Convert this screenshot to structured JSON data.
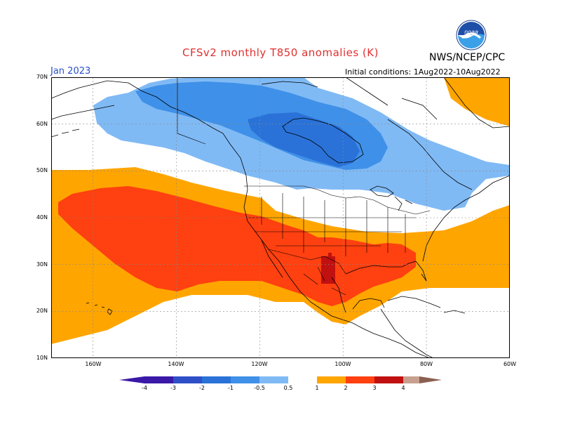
{
  "title": "CFSv2 monthly T850 anomalies (K)",
  "organization": "NWS/NCEP/CPC",
  "logo_text": "NOAA",
  "valid_month": "Jan 2023",
  "initial_conditions": "Initial conditions: 1Aug2022-10Aug2022",
  "lat_labels": [
    "70N",
    "60N",
    "50N",
    "40N",
    "30N",
    "20N",
    "10N"
  ],
  "lon_labels": [
    "160W",
    "140W",
    "120W",
    "100W",
    "80W",
    "60W"
  ],
  "colorbar": {
    "labels": [
      "-4",
      "-3",
      "-2",
      "-1",
      "-0.5",
      "0.5",
      "1",
      "2",
      "3",
      "4"
    ],
    "colors": [
      "#3a18a8",
      "#2f4fc8",
      "#2a72d8",
      "#3f90e8",
      "#80baf5",
      "#ffffff",
      "#ffa500",
      "#ff4010",
      "#c01010",
      "#8a0000",
      "#c8a090",
      "#8a6050"
    ]
  },
  "map": {
    "domain": {
      "lon_min": -170,
      "lon_max": -60,
      "lat_min": 10,
      "lat_max": 70
    },
    "anomaly_regions": [
      {
        "level": "-0.5 to -1",
        "area": "Alaska to Great Lakes, Canada",
        "color": "#80baf5"
      },
      {
        "level": "-1 to -2",
        "area": "Western and central Canada",
        "color": "#3f90e8"
      },
      {
        "level": "-2 to -3",
        "area": "Central Canada, Hudson Bay region",
        "color": "#2a72d8"
      },
      {
        "level": "0.5 to 1",
        "area": "North Pacific, southern US, Gulf, Atlantic",
        "color": "#ffa500"
      },
      {
        "level": "1 to 2",
        "area": "Subtropical Pacific to southern US",
        "color": "#ff4010"
      },
      {
        "level": "2 to 3",
        "area": "Northern Mexico / Texas",
        "color": "#c01010"
      },
      {
        "level": "0.5 to 1",
        "area": "Greenland coast",
        "color": "#ffa500"
      }
    ]
  }
}
